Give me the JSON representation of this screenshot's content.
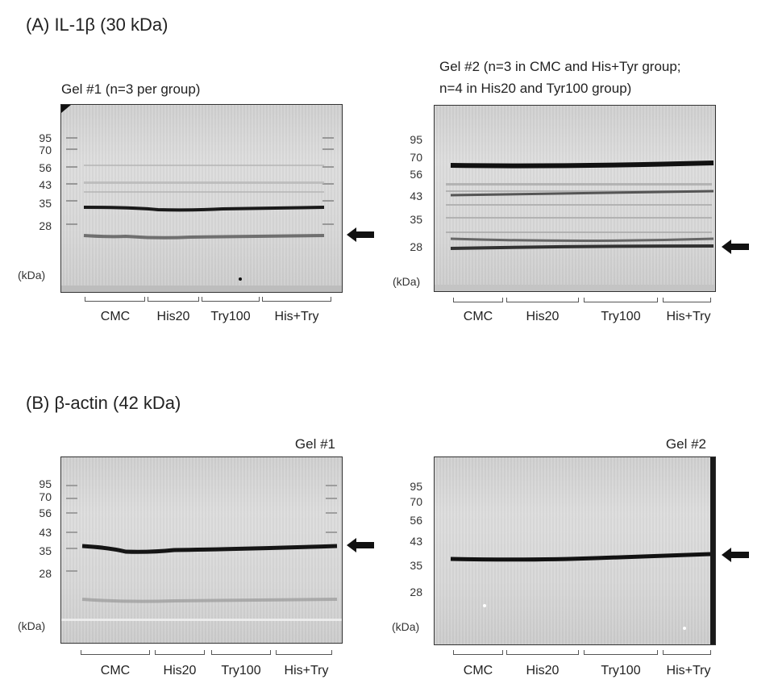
{
  "panel_a": {
    "title": "(A) IL-1β (30 kDa)",
    "gel1": {
      "title": "Gel #1 (n=3 per group)",
      "markers": [
        "95",
        "70",
        "56",
        "43",
        "35",
        "28"
      ],
      "unit": "(kDa)",
      "groups": [
        "CMC",
        "His20",
        "Try100",
        "His+Try"
      ]
    },
    "gel2": {
      "title_line1": "Gel #2 (n=3 in CMC and His+Tyr group;",
      "title_line2": "n=4 in His20 and Tyr100 group)",
      "markers": [
        "95",
        "70",
        "56",
        "43",
        "35",
        "28"
      ],
      "unit": "(kDa)",
      "groups": [
        "CMC",
        "His20",
        "Try100",
        "His+Try"
      ]
    }
  },
  "panel_b": {
    "title": "(B) β-actin (42 kDa)",
    "gel1": {
      "title": "Gel #1",
      "markers": [
        "95",
        "70",
        "56",
        "43",
        "35",
        "28"
      ],
      "unit": "(kDa)",
      "groups": [
        "CMC",
        "His20",
        "Try100",
        "His+Try"
      ]
    },
    "gel2": {
      "title": "Gel #2",
      "markers": [
        "95",
        "70",
        "56",
        "43",
        "35",
        "28"
      ],
      "unit": "(kDa)",
      "groups": [
        "CMC",
        "His20",
        "Try100",
        "His+Try"
      ]
    }
  }
}
